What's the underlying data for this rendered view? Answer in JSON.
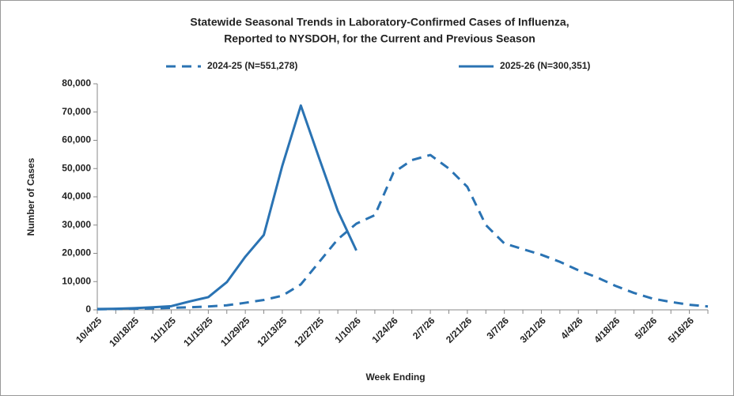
{
  "chart_data": {
    "type": "line",
    "title": [
      "Statewide Seasonal Trends in Laboratory-Confirmed  Cases of Influenza,",
      "Reported to NYSDOH, for the Current and Previous Season"
    ],
    "xlabel": "Week Ending",
    "ylabel": "Number of Cases",
    "categories": [
      "10/4/25",
      null,
      "10/18/25",
      null,
      "11/1/25",
      null,
      "11/15/25",
      null,
      "11/29/25",
      null,
      "12/13/25",
      null,
      "12/27/25",
      null,
      "1/10/26",
      null,
      "1/24/26",
      null,
      "2/7/26",
      null,
      "2/21/26",
      null,
      "3/7/26",
      null,
      "3/21/26",
      null,
      "4/4/26",
      null,
      "4/18/26",
      null,
      "5/2/26",
      null,
      "5/16/26",
      null
    ],
    "series": [
      {
        "name": "2024-25 (N=551,278)",
        "color": "#2a73b3",
        "dashed": true,
        "values": [
          200,
          300,
          400,
          500,
          700,
          900,
          1200,
          1600,
          2500,
          3500,
          5000,
          9000,
          17000,
          25000,
          30500,
          33500,
          48500,
          53000,
          54800,
          50000,
          43500,
          30000,
          23500,
          21500,
          19500,
          17000,
          14000,
          11500,
          8500,
          6000,
          4000,
          2800,
          1800,
          1200
        ]
      },
      {
        "name": "2025-26 (N=300,351)",
        "color": "#2a73b3",
        "dashed": false,
        "values": [
          300,
          400,
          600,
          900,
          1300,
          3000,
          4500,
          9800,
          18800,
          26500,
          51000,
          72300,
          53500,
          35000,
          21000,
          null,
          null,
          null,
          null,
          null,
          null,
          null,
          null,
          null,
          null,
          null,
          null,
          null,
          null,
          null,
          null,
          null,
          null,
          null
        ]
      }
    ],
    "ylim": [
      0,
      80000
    ],
    "yticks": [
      0,
      {
        "value": 10000,
        "label": "10,000"
      },
      {
        "value": 20000,
        "label": "20,000"
      },
      {
        "value": 30000,
        "label": "30,000"
      },
      {
        "value": 40000,
        "label": "40,000"
      },
      {
        "value": 50000,
        "label": "50,000"
      },
      {
        "value": 60000,
        "label": "60,000"
      },
      {
        "value": 70000,
        "label": "70,000"
      },
      {
        "value": 80000,
        "label": "80,000"
      }
    ],
    "grid": false
  }
}
